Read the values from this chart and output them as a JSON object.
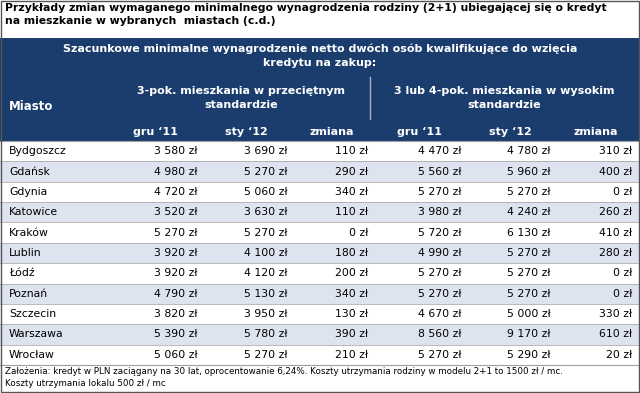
{
  "title_line1": "Przykłady zmian wymaganego minimalnego wynagrodzenia rodziny (2+1) ubiegającej się o kredyt",
  "title_line2": "na mieszkanie w wybranych  miastach (c.d.)",
  "header_main": "Szacunkowe minimalne wynagrodzenie netto dwóch osób kwalifikujące do wzięcia\nkredytu na zakup:",
  "col_header_left": "3-pok. mieszkania w przeciętnym\nstandardzie",
  "col_header_right": "3 lub 4-pok. mieszkania w wysokim\nstandardzie",
  "subheaders": [
    "gru ‘11",
    "sty ‘12",
    "zmiana",
    "gru ‘11",
    "sty ‘12",
    "zmiana"
  ],
  "row_label": "Miasto",
  "cities": [
    "Bydgoszcz",
    "Gdańsk",
    "Gdynia",
    "Katowice",
    "Kraków",
    "Lublin",
    "Łódź",
    "Poznań",
    "Szczecin",
    "Warszawa",
    "Wrocław"
  ],
  "data": [
    [
      "3 580 zł",
      "3 690 zł",
      "110 zł",
      "4 470 zł",
      "4 780 zł",
      "310 zł"
    ],
    [
      "4 980 zł",
      "5 270 zł",
      "290 zł",
      "5 560 zł",
      "5 960 zł",
      "400 zł"
    ],
    [
      "4 720 zł",
      "5 060 zł",
      "340 zł",
      "5 270 zł",
      "5 270 zł",
      "0 zł"
    ],
    [
      "3 520 zł",
      "3 630 zł",
      "110 zł",
      "3 980 zł",
      "4 240 zł",
      "260 zł"
    ],
    [
      "5 270 zł",
      "5 270 zł",
      "0 zł",
      "5 720 zł",
      "6 130 zł",
      "410 zł"
    ],
    [
      "3 920 zł",
      "4 100 zł",
      "180 zł",
      "4 990 zł",
      "5 270 zł",
      "280 zł"
    ],
    [
      "3 920 zł",
      "4 120 zł",
      "200 zł",
      "5 270 zł",
      "5 270 zł",
      "0 zł"
    ],
    [
      "4 790 zł",
      "5 130 zł",
      "340 zł",
      "5 270 zł",
      "5 270 zł",
      "0 zł"
    ],
    [
      "3 820 zł",
      "3 950 zł",
      "130 zł",
      "4 670 zł",
      "5 000 zł",
      "330 zł"
    ],
    [
      "5 390 zł",
      "5 780 zł",
      "390 zł",
      "8 560 zł",
      "9 170 zł",
      "610 zł"
    ],
    [
      "5 060 zł",
      "5 270 zł",
      "210 zł",
      "5 270 zł",
      "5 290 zł",
      "20 zł"
    ]
  ],
  "footnote_line1": "Założenia: kredyt w PLN zaciągany na 30 lat, oprocentowanie 6,24%. Koszty utrzymania rodziny w modelu 2+1 to 1500 zł / mc.",
  "footnote_line2": "Koszty utrzymania lokalu 500 zł / mc",
  "header_bg": "#1b3d6e",
  "header_text": "#ffffff",
  "title_bg": "#ffffff",
  "title_text": "#000000",
  "row_bg_white": "#ffffff",
  "row_bg_blue": "#dde4f0",
  "line_color": "#a0a0a0",
  "border_color": "#555555"
}
